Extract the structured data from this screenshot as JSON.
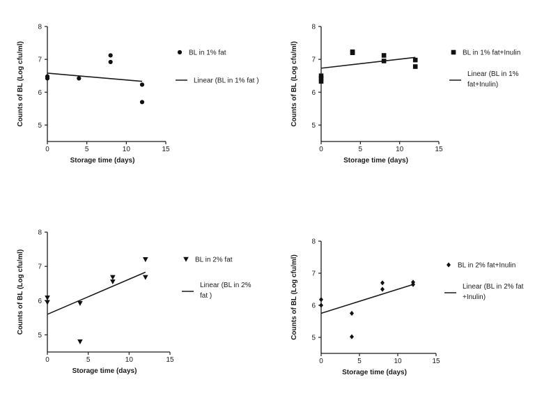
{
  "chart_data": [
    {
      "type": "scatter",
      "ylabel": "Counts of BL (Log cfu/ml)",
      "xlabel": "Storage time (days)",
      "xlim": [
        0,
        15
      ],
      "ylim": [
        4.5,
        8
      ],
      "xticks": [
        "0",
        "5",
        "10",
        "15"
      ],
      "yticks": [
        "5",
        "6",
        "7",
        "8"
      ],
      "marker": "circle",
      "legend": {
        "points_label": "BL in 1% fat",
        "line_label_lines": [
          "Linear (BL in 1% fat )"
        ]
      },
      "points": [
        {
          "x": 0,
          "y": 6.42
        },
        {
          "x": 0,
          "y": 6.48
        },
        {
          "x": 4,
          "y": 6.42
        },
        {
          "x": 8,
          "y": 7.12
        },
        {
          "x": 8,
          "y": 6.92
        },
        {
          "x": 12,
          "y": 6.23
        },
        {
          "x": 12,
          "y": 5.7
        }
      ],
      "fit": {
        "x": [
          0,
          12
        ],
        "y": [
          6.58,
          6.33
        ]
      }
    },
    {
      "type": "scatter",
      "ylabel": "Counts of BL (Log cfu/ml)",
      "xlabel": "Storage time (days)",
      "xlim": [
        0,
        15
      ],
      "ylim": [
        4.5,
        8
      ],
      "xticks": [
        "0",
        "5",
        "10",
        "15"
      ],
      "yticks": [
        "5",
        "6",
        "7",
        "8"
      ],
      "marker": "square",
      "legend": {
        "points_label": "BL in 1% fat+Inulin",
        "line_label_lines": [
          "Linear (BL in 1%",
          "fat+Inulin)"
        ]
      },
      "points": [
        {
          "x": 0,
          "y": 6.33
        },
        {
          "x": 0,
          "y": 6.42
        },
        {
          "x": 0,
          "y": 6.5
        },
        {
          "x": 4,
          "y": 7.2
        },
        {
          "x": 4,
          "y": 7.23
        },
        {
          "x": 8,
          "y": 7.12
        },
        {
          "x": 8,
          "y": 6.95
        },
        {
          "x": 12,
          "y": 6.98
        },
        {
          "x": 12,
          "y": 6.78
        }
      ],
      "fit": {
        "x": [
          0,
          12
        ],
        "y": [
          6.73,
          7.06
        ]
      }
    },
    {
      "type": "scatter",
      "ylabel": "Counts of BL (Log cfu/ml)",
      "xlabel": "Storage time (days)",
      "xlim": [
        0,
        15
      ],
      "ylim": [
        4.5,
        8
      ],
      "xticks": [
        "0",
        "5",
        "10",
        "15"
      ],
      "yticks": [
        "5",
        "6",
        "7",
        "8"
      ],
      "marker": "triangle-down",
      "legend": {
        "points_label": "BL in 2% fat",
        "line_label_lines": [
          "Linear (BL in 2%",
          "fat )"
        ]
      },
      "points": [
        {
          "x": 0,
          "y": 6.08
        },
        {
          "x": 0,
          "y": 5.95
        },
        {
          "x": 4,
          "y": 5.92
        },
        {
          "x": 4,
          "y": 4.8
        },
        {
          "x": 8,
          "y": 6.68
        },
        {
          "x": 8,
          "y": 6.55
        },
        {
          "x": 12,
          "y": 7.2
        },
        {
          "x": 12,
          "y": 6.68
        }
      ],
      "fit": {
        "x": [
          0,
          12
        ],
        "y": [
          5.6,
          6.83
        ]
      }
    },
    {
      "type": "scatter",
      "ylabel": "Counts of BL (Log cfu/ml)",
      "xlabel": "Storage time (days)",
      "xlim": [
        0,
        15
      ],
      "ylim": [
        4.5,
        8
      ],
      "xticks": [
        "0",
        "5",
        "10",
        "15"
      ],
      "yticks": [
        "5",
        "6",
        "7",
        "8"
      ],
      "marker": "diamond",
      "legend": {
        "points_label": "BL in 2% fat+Inulin",
        "line_label_lines": [
          "Linear (BL in 2% fat",
          "+Inulin)"
        ]
      },
      "points": [
        {
          "x": 0,
          "y": 6.18
        },
        {
          "x": 0,
          "y": 6.0
        },
        {
          "x": 4,
          "y": 5.75
        },
        {
          "x": 4,
          "y": 5.02
        },
        {
          "x": 8,
          "y": 6.7
        },
        {
          "x": 8,
          "y": 6.5
        },
        {
          "x": 12,
          "y": 6.72
        },
        {
          "x": 12,
          "y": 6.65
        }
      ],
      "fit": {
        "x": [
          0,
          12
        ],
        "y": [
          5.75,
          6.65
        ]
      }
    }
  ]
}
